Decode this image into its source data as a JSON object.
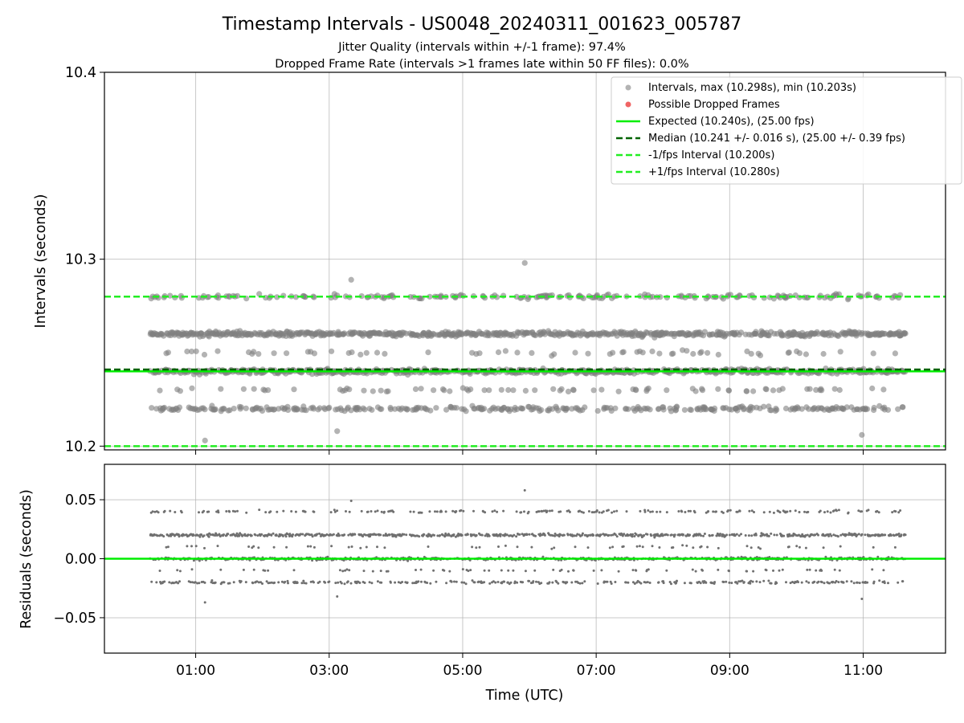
{
  "chart_data": [
    {
      "type": "scatter",
      "title": "Timestamp Intervals - US0048_20240311_001623_005787",
      "subtitle_lines": [
        "Jitter Quality (intervals within +/-1 frame): 97.4%",
        "Dropped Frame Rate (intervals >1 frames late within 50 FF files): 0.0%"
      ],
      "ylabel": "Intervals (seconds)",
      "xlabel": "",
      "xlim": [
        -0.3667,
        12.2333
      ],
      "ylim": [
        10.198,
        10.4
      ],
      "x_ticks": [
        1,
        3,
        5,
        7,
        9,
        11
      ],
      "x_tick_labels": [
        "01:00",
        "03:00",
        "05:00",
        "07:00",
        "09:00",
        "11:00"
      ],
      "y_ticks": [
        10.2,
        10.3,
        10.4
      ],
      "y_tick_labels": [
        "10.2",
        "10.3",
        "10.4"
      ],
      "grid": true,
      "x_range_data": [
        0.3167,
        11.6333
      ],
      "bands": [
        {
          "value": 10.24,
          "fraction": 0.3
        },
        {
          "value": 10.26,
          "fraction": 0.36
        },
        {
          "value": 10.22,
          "fraction": 0.16
        },
        {
          "value": 10.28,
          "fraction": 0.1
        },
        {
          "value": 10.25,
          "fraction": 0.04
        },
        {
          "value": 10.23,
          "fraction": 0.04
        }
      ],
      "extreme_points": [
        {
          "x": 5.93,
          "y": 10.298
        },
        {
          "x": 1.14,
          "y": 10.203
        },
        {
          "x": 3.12,
          "y": 10.208
        },
        {
          "x": 10.98,
          "y": 10.206
        },
        {
          "x": 3.33,
          "y": 10.289
        }
      ],
      "series": [
        {
          "name": "Intervals, max (10.298s), min (10.203s)",
          "color": "#808080",
          "style": "scatter"
        },
        {
          "name": "Possible Dropped Frames",
          "color": "#f06464",
          "style": "scatter"
        },
        {
          "name": "Expected (10.240s), (25.00 fps)",
          "color": "#00ee00",
          "style": "solid",
          "value": 10.24
        },
        {
          "name": "Median (10.241 +/- 0.016 s), (25.00 +/- 0.39 fps)",
          "color": "#006400",
          "style": "dashed",
          "value": 10.241
        },
        {
          "name": "-1/fps Interval (10.200s)",
          "color": "#22ee22",
          "style": "dashed",
          "value": 10.2
        },
        {
          "name": "+1/fps Interval (10.280s)",
          "color": "#22ee22",
          "style": "dashed",
          "value": 10.28
        }
      ],
      "legend_position": "top-right"
    },
    {
      "type": "scatter",
      "title": "",
      "ylabel": "Residuals (seconds)",
      "xlabel": "Time (UTC)",
      "xlim": [
        -0.3667,
        12.2333
      ],
      "ylim": [
        -0.08,
        0.08
      ],
      "x_ticks": [
        1,
        3,
        5,
        7,
        9,
        11
      ],
      "x_tick_labels": [
        "01:00",
        "03:00",
        "05:00",
        "07:00",
        "09:00",
        "11:00"
      ],
      "y_ticks": [
        -0.05,
        0.0,
        0.05
      ],
      "y_tick_labels": [
        "−0.05",
        "0.00",
        "0.05"
      ],
      "grid": true,
      "bands": [
        {
          "value": 0.0,
          "fraction": 0.3
        },
        {
          "value": 0.02,
          "fraction": 0.36
        },
        {
          "value": -0.02,
          "fraction": 0.16
        },
        {
          "value": 0.04,
          "fraction": 0.1
        },
        {
          "value": 0.01,
          "fraction": 0.04
        },
        {
          "value": -0.01,
          "fraction": 0.04
        }
      ],
      "extreme_points": [
        {
          "x": 5.93,
          "y": 0.058
        },
        {
          "x": 1.14,
          "y": -0.037
        },
        {
          "x": 3.12,
          "y": -0.032
        },
        {
          "x": 10.98,
          "y": -0.034
        },
        {
          "x": 3.33,
          "y": 0.049
        }
      ],
      "series": [
        {
          "name": "Residuals",
          "color": "#707070",
          "style": "scatter"
        },
        {
          "name": "Zero line",
          "color": "#00ee00",
          "style": "solid",
          "value": 0.0
        }
      ]
    }
  ],
  "point_count": 2000,
  "random_seed": 48
}
